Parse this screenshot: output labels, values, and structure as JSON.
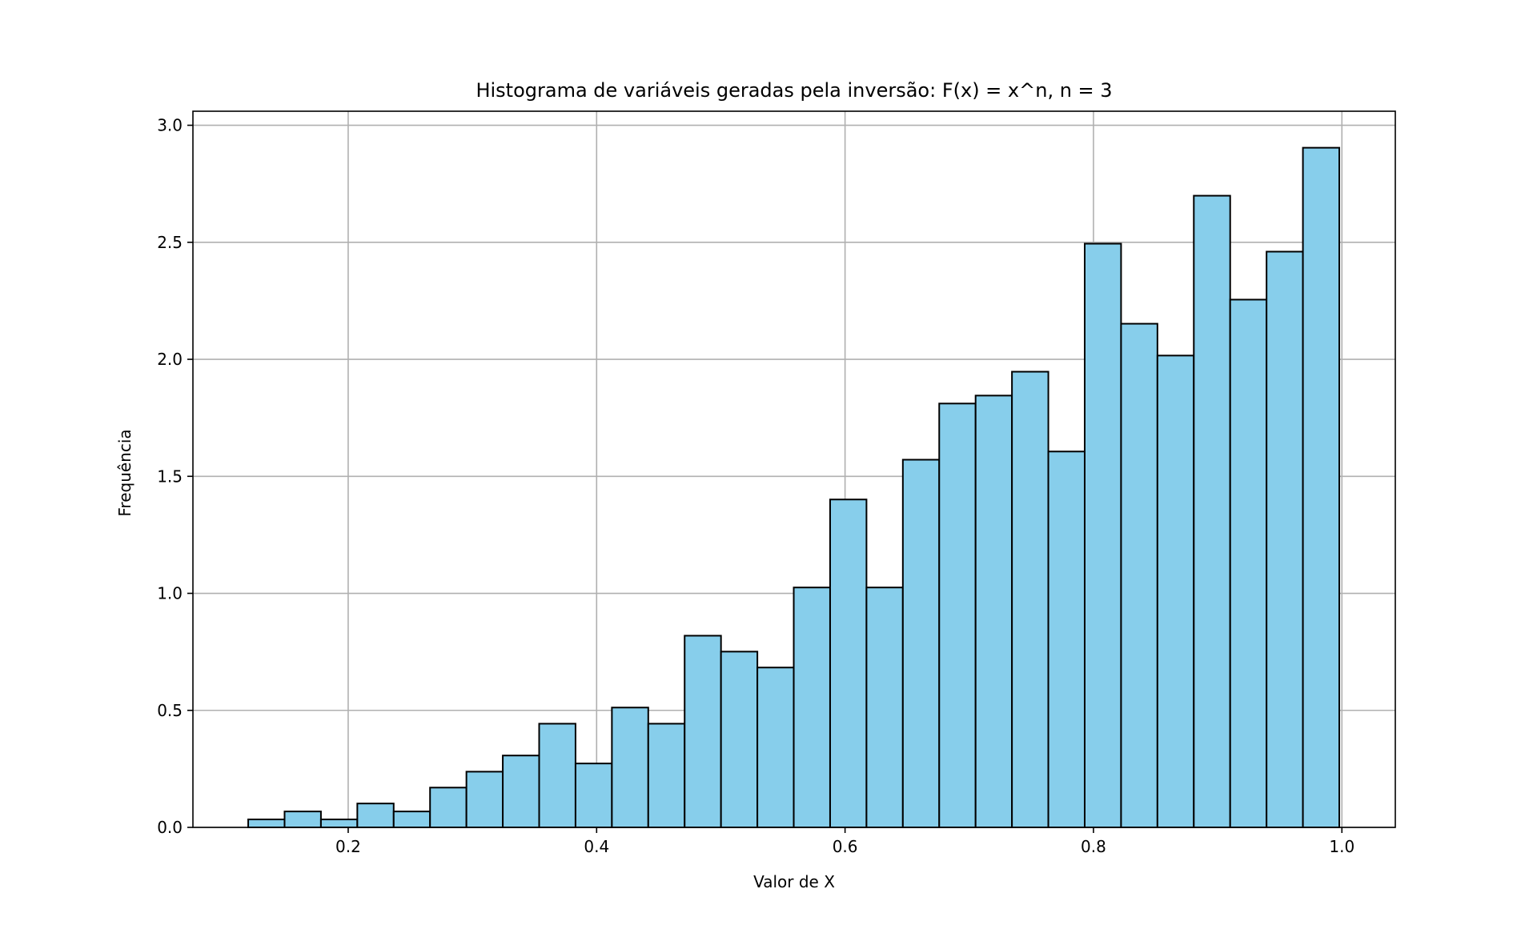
{
  "chart_data": {
    "type": "bar",
    "title": "Histograma de variáveis geradas pela inversão: F(x) = x^n, n = 3",
    "xlabel": "Valor de X",
    "ylabel": "Frequência",
    "xlim": [
      0.075,
      1.043
    ],
    "ylim": [
      0.0,
      3.06
    ],
    "xticks": [
      {
        "value": 0.2,
        "label": "0.2"
      },
      {
        "value": 0.4,
        "label": "0.4"
      },
      {
        "value": 0.6,
        "label": "0.6"
      },
      {
        "value": 0.8,
        "label": "0.8"
      },
      {
        "value": 1.0,
        "label": "1.0"
      }
    ],
    "yticks": [
      {
        "value": 0.0,
        "label": "0.0"
      },
      {
        "value": 0.5,
        "label": "0.5"
      },
      {
        "value": 1.0,
        "label": "1.0"
      },
      {
        "value": 1.5,
        "label": "1.5"
      },
      {
        "value": 2.0,
        "label": "2.0"
      },
      {
        "value": 2.5,
        "label": "2.5"
      },
      {
        "value": 3.0,
        "label": "3.0"
      }
    ],
    "grid": true,
    "bin_edges": [
      0.1195,
      0.14878,
      0.17806,
      0.20734,
      0.23662,
      0.2659,
      0.29518,
      0.32446,
      0.35374,
      0.38302,
      0.4123,
      0.44158,
      0.47086,
      0.50014,
      0.52942,
      0.5587,
      0.58798,
      0.61726,
      0.64654,
      0.67582,
      0.7051,
      0.73438,
      0.76366,
      0.79294,
      0.82222,
      0.8515,
      0.88078,
      0.91006,
      0.93934,
      0.96862,
      0.9979
    ],
    "values": [
      0.034,
      0.068,
      0.034,
      0.102,
      0.068,
      0.17,
      0.238,
      0.307,
      0.443,
      0.273,
      0.512,
      0.443,
      0.819,
      0.751,
      0.683,
      1.025,
      1.401,
      1.025,
      1.571,
      1.811,
      1.845,
      1.947,
      1.606,
      2.494,
      2.152,
      2.016,
      2.699,
      2.255,
      2.46,
      2.904
    ],
    "colors": {
      "bar_fill": "#87ceeb",
      "bar_edge": "#000000",
      "grid": "#b0b0b0",
      "axes": "#000000"
    }
  }
}
